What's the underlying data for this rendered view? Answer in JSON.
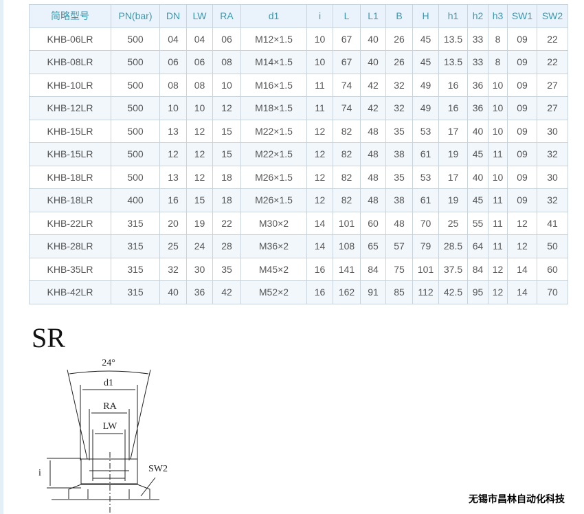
{
  "table": {
    "headers": [
      "简略型号",
      "PN(bar)",
      "DN",
      "LW",
      "RA",
      "d1",
      "i",
      "L",
      "L1",
      "B",
      "H",
      "h1",
      "h2",
      "h3",
      "SW1",
      "SW2"
    ],
    "rows": [
      [
        "KHB-06LR",
        "500",
        "04",
        "04",
        "06",
        "M12×1.5",
        "10",
        "67",
        "40",
        "26",
        "45",
        "13.5",
        "33",
        "8",
        "09",
        "22"
      ],
      [
        "KHB-08LR",
        "500",
        "06",
        "06",
        "08",
        "M14×1.5",
        "10",
        "67",
        "40",
        "26",
        "45",
        "13.5",
        "33",
        "8",
        "09",
        "22"
      ],
      [
        "KHB-10LR",
        "500",
        "08",
        "08",
        "10",
        "M16×1.5",
        "11",
        "74",
        "42",
        "32",
        "49",
        "16",
        "36",
        "10",
        "09",
        "27"
      ],
      [
        "KHB-12LR",
        "500",
        "10",
        "10",
        "12",
        "M18×1.5",
        "11",
        "74",
        "42",
        "32",
        "49",
        "16",
        "36",
        "10",
        "09",
        "27"
      ],
      [
        "KHB-15LR",
        "500",
        "13",
        "12",
        "15",
        "M22×1.5",
        "12",
        "82",
        "48",
        "35",
        "53",
        "17",
        "40",
        "10",
        "09",
        "30"
      ],
      [
        "KHB-15LR",
        "500",
        "12",
        "12",
        "15",
        "M22×1.5",
        "12",
        "82",
        "48",
        "38",
        "61",
        "19",
        "45",
        "11",
        "09",
        "32"
      ],
      [
        "KHB-18LR",
        "500",
        "13",
        "12",
        "18",
        "M26×1.5",
        "12",
        "82",
        "48",
        "35",
        "53",
        "17",
        "40",
        "10",
        "09",
        "30"
      ],
      [
        "KHB-18LR",
        "400",
        "16",
        "15",
        "18",
        "M26×1.5",
        "12",
        "82",
        "48",
        "38",
        "61",
        "19",
        "45",
        "11",
        "09",
        "32"
      ],
      [
        "KHB-22LR",
        "315",
        "20",
        "19",
        "22",
        "M30×2",
        "14",
        "101",
        "60",
        "48",
        "70",
        "25",
        "55",
        "11",
        "12",
        "41"
      ],
      [
        "KHB-28LR",
        "315",
        "25",
        "24",
        "28",
        "M36×2",
        "14",
        "108",
        "65",
        "57",
        "79",
        "28.5",
        "64",
        "11",
        "12",
        "50"
      ],
      [
        "KHB-35LR",
        "315",
        "32",
        "30",
        "35",
        "M45×2",
        "16",
        "141",
        "84",
        "75",
        "101",
        "37.5",
        "84",
        "12",
        "14",
        "60"
      ],
      [
        "KHB-42LR",
        "315",
        "40",
        "36",
        "42",
        "M52×2",
        "16",
        "162",
        "91",
        "85",
        "112",
        "42.5",
        "95",
        "12",
        "14",
        "70"
      ]
    ]
  },
  "diagram": {
    "title": "SR",
    "angle": "24°",
    "d1": "d1",
    "ra": "RA",
    "lw": "LW",
    "i": "i",
    "sw2": "SW2"
  },
  "footer": "无锡市昌林自动化科技"
}
